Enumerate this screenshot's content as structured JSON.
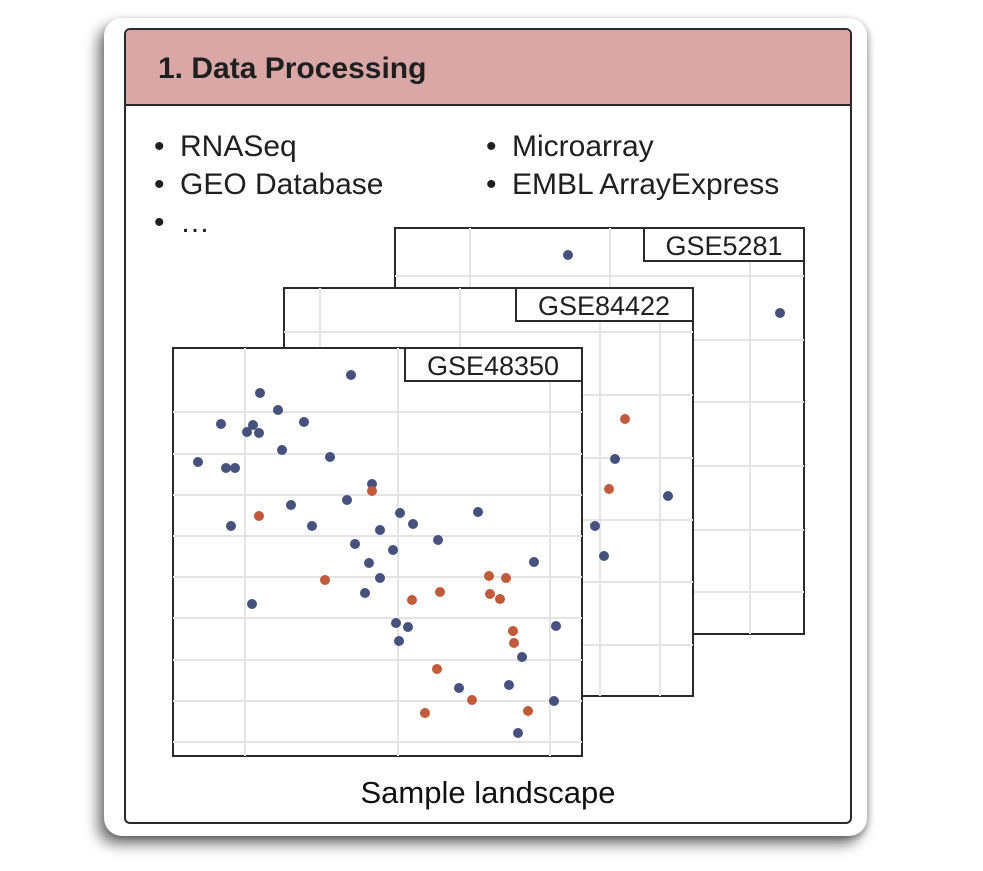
{
  "panel": {
    "title": "1. Data Processing",
    "caption": "Sample landscape"
  },
  "bullets": {
    "bullet_char": "•",
    "left": [
      "RNASeq",
      "GEO Database",
      "…"
    ],
    "right": [
      "Microarray",
      "EMBL ArrayExpress"
    ]
  },
  "colors": {
    "header_bg": "#d8a7a6",
    "blue_dot": "#46527d",
    "orange_dot": "#c05a3b",
    "grid": "#e4e4e4"
  },
  "datasets": [
    "GSE5281",
    "GSE84422",
    "GSE48350"
  ]
}
